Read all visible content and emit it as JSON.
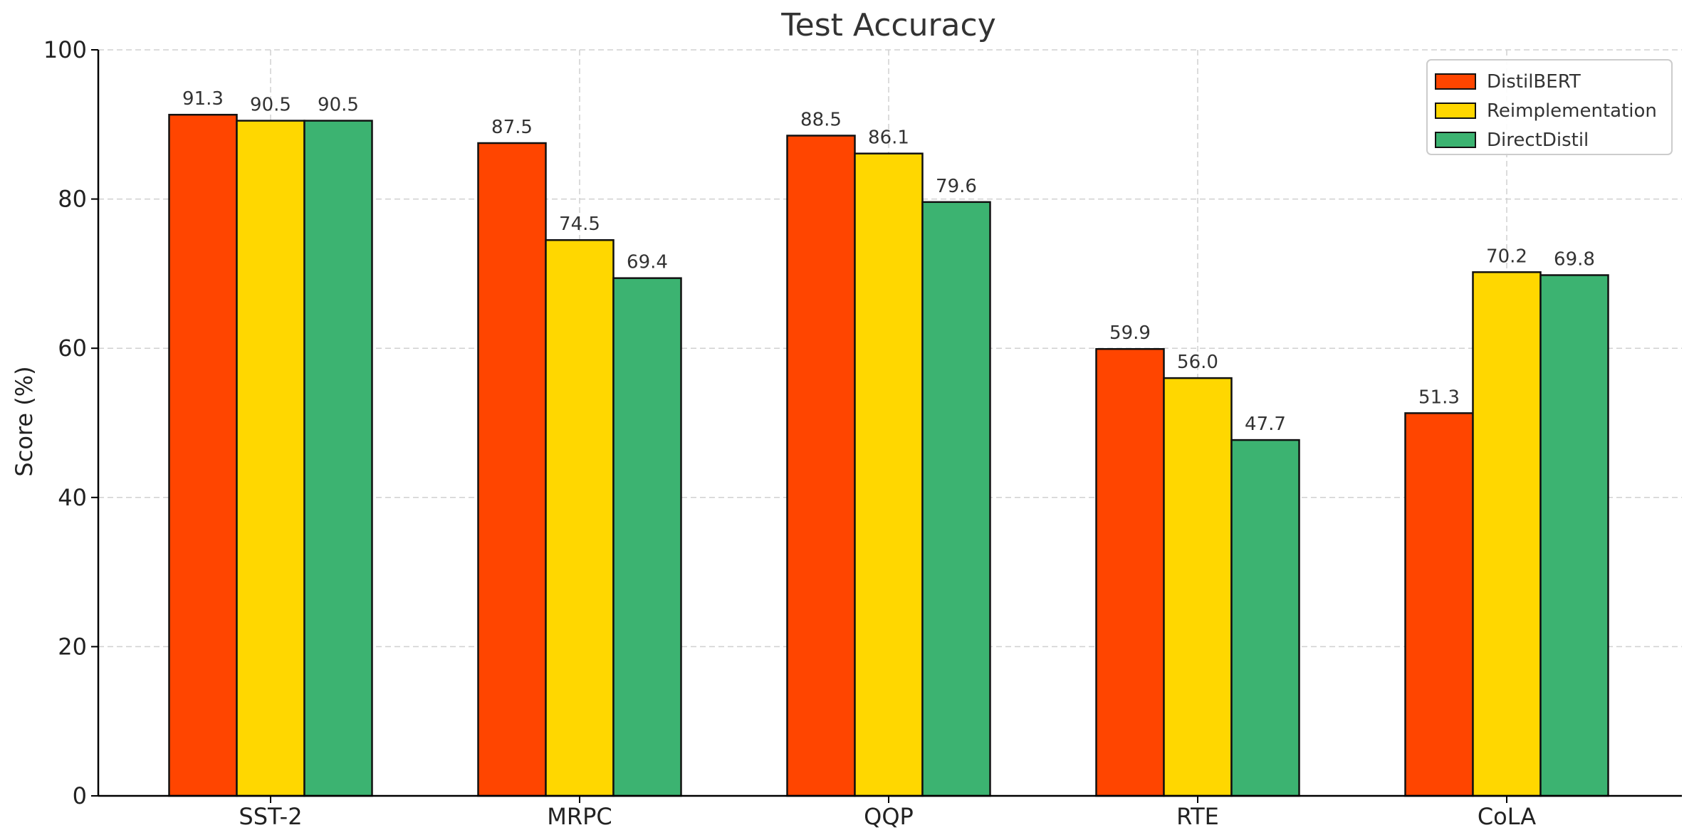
{
  "chart_data": {
    "type": "bar",
    "title": "Test Accuracy",
    "xlabel": "",
    "ylabel": "Score (%)",
    "categories": [
      "SST-2",
      "MRPC",
      "QQP",
      "RTE",
      "CoLA"
    ],
    "series": [
      {
        "name": "DistilBERT",
        "color": "#FF4500",
        "values": [
          91.3,
          87.5,
          88.5,
          59.9,
          51.3
        ],
        "labels": [
          "91.3",
          "87.5",
          "88.5",
          "59.9",
          "51.3"
        ]
      },
      {
        "name": "Reimplementation",
        "color": "#FFD700",
        "values": [
          90.5,
          74.5,
          86.1,
          56.0,
          70.2
        ],
        "labels": [
          "90.5",
          "74.5",
          "86.1",
          "56.0",
          "70.2"
        ]
      },
      {
        "name": "DirectDistil",
        "color": "#3CB371",
        "values": [
          90.5,
          69.4,
          79.6,
          47.7,
          69.8
        ],
        "labels": [
          "90.5",
          "69.4",
          "79.6",
          "47.7",
          "69.8"
        ]
      }
    ],
    "ylim": [
      0,
      100
    ],
    "yticks": [
      "0",
      "20",
      "40",
      "60",
      "80",
      "100"
    ],
    "grid": true,
    "legend_position": "top-right"
  }
}
